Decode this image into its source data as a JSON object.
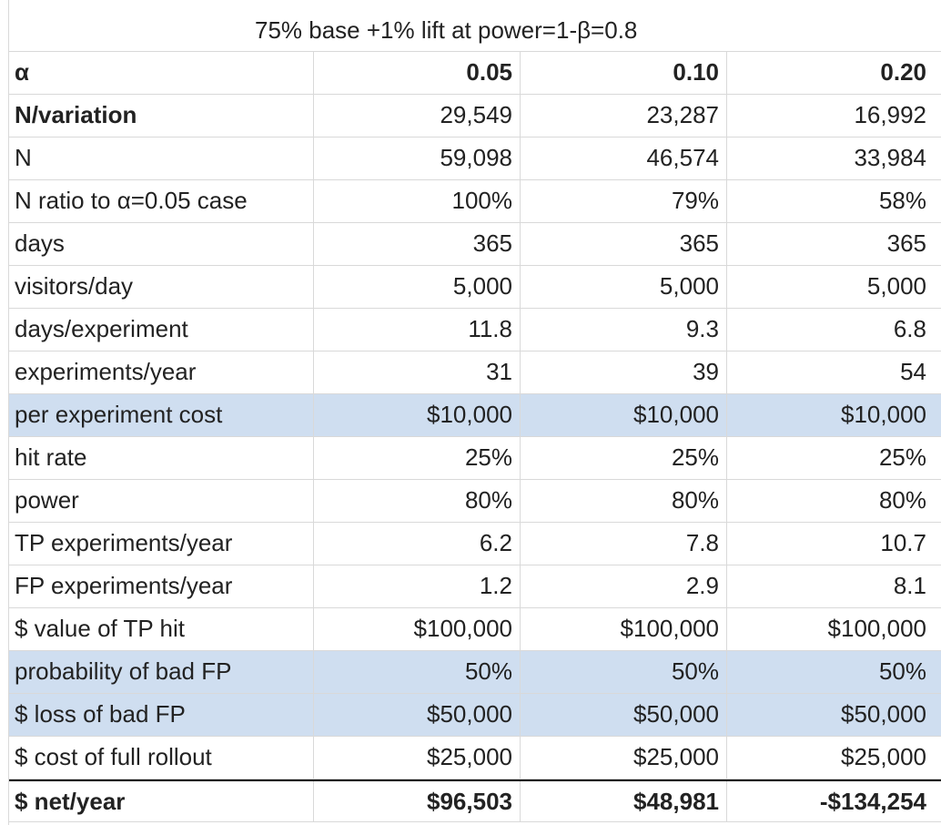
{
  "title": "75% base +1% lift at power=1-β=0.8",
  "rows": [
    {
      "label": "α",
      "v": [
        "0.05",
        "0.10",
        "0.20"
      ]
    },
    {
      "label": "N/variation",
      "v": [
        "29,549",
        "23,287",
        "16,992"
      ]
    },
    {
      "label": "N",
      "v": [
        "59,098",
        "46,574",
        "33,984"
      ]
    },
    {
      "label": "N ratio to α=0.05 case",
      "v": [
        "100%",
        "79%",
        "58%"
      ]
    },
    {
      "label": "days",
      "v": [
        "365",
        "365",
        "365"
      ]
    },
    {
      "label": "visitors/day",
      "v": [
        "5,000",
        "5,000",
        "5,000"
      ]
    },
    {
      "label": "days/experiment",
      "v": [
        "11.8",
        "9.3",
        "6.8"
      ]
    },
    {
      "label": "experiments/year",
      "v": [
        "31",
        "39",
        "54"
      ]
    },
    {
      "label": "per experiment cost",
      "v": [
        "$10,000",
        "$10,000",
        "$10,000"
      ]
    },
    {
      "label": "hit rate",
      "v": [
        "25%",
        "25%",
        "25%"
      ]
    },
    {
      "label": "power",
      "v": [
        "80%",
        "80%",
        "80%"
      ]
    },
    {
      "label": "TP experiments/year",
      "v": [
        "6.2",
        "7.8",
        "10.7"
      ]
    },
    {
      "label": "FP experiments/year",
      "v": [
        "1.2",
        "2.9",
        "8.1"
      ]
    },
    {
      "label": "$ value of TP hit",
      "v": [
        "$100,000",
        "$100,000",
        "$100,000"
      ]
    },
    {
      "label": "probability of bad FP",
      "v": [
        "50%",
        "50%",
        "50%"
      ]
    },
    {
      "label": "$ loss of bad FP",
      "v": [
        "$50,000",
        "$50,000",
        "$50,000"
      ]
    },
    {
      "label": "$ cost of full rollout",
      "v": [
        "$25,000",
        "$25,000",
        "$25,000"
      ]
    },
    {
      "label": "$ net/year",
      "v": [
        "$96,503",
        "$48,981",
        "-$134,254"
      ]
    }
  ],
  "highlight_color": "#cfdef0"
}
